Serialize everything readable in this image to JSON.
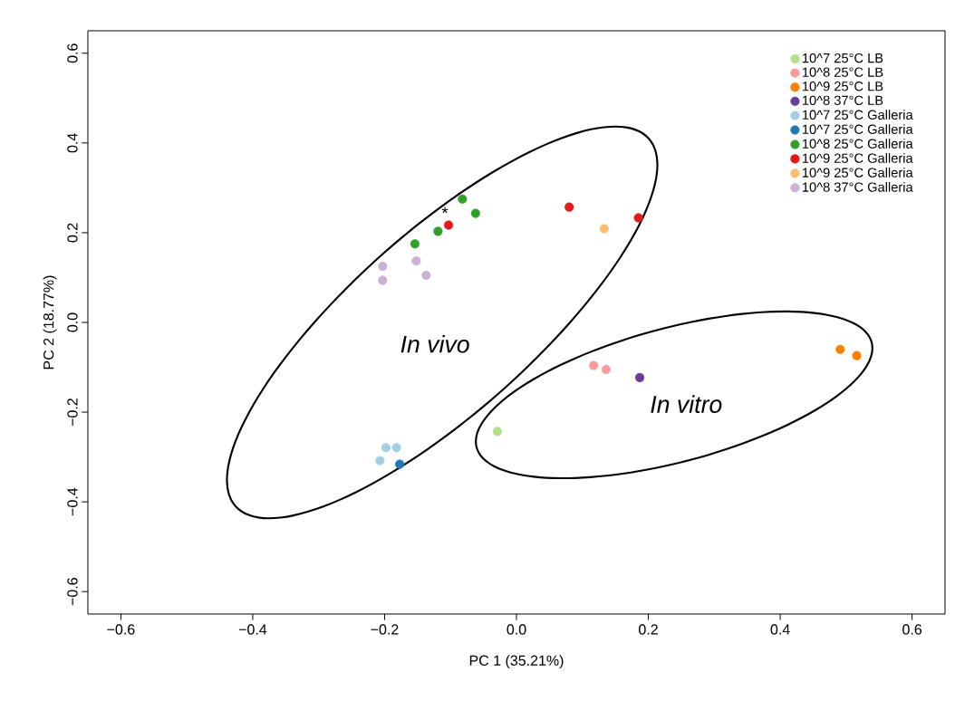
{
  "chart_data": {
    "type": "scatter",
    "xlabel": "PC 1 (35.21%)",
    "ylabel": "PC 2 (18.77%)",
    "xlim": [
      -0.65,
      0.65
    ],
    "ylim": [
      -0.65,
      0.65
    ],
    "xticks": [
      {
        "value": -0.6,
        "label": "−0.6"
      },
      {
        "value": -0.4,
        "label": "−0.4"
      },
      {
        "value": -0.2,
        "label": "−0.2"
      },
      {
        "value": 0,
        "label": "0.0"
      },
      0.2,
      0.4,
      0.6
    ],
    "yticks": [
      {
        "value": -0.6,
        "label": "−0.6"
      },
      {
        "value": -0.4,
        "label": "−0.4"
      },
      {
        "value": -0.2,
        "label": "−0.2"
      },
      {
        "value": 0,
        "label": "0.0"
      },
      0.2,
      0.4,
      0.6
    ],
    "marker": "circle",
    "legend": "top right",
    "grid": false,
    "series": [
      {
        "name": "10^7 25°C LB",
        "color": "#b2df8a",
        "x": [
          -0.029
        ],
        "values": [
          -0.243
        ]
      },
      {
        "name": "10^8 25°C LB",
        "color": "#fb9a99",
        "x": [
          0.117,
          0.136
        ],
        "values": [
          -0.096,
          -0.105
        ]
      },
      {
        "name": "10^9 25°C LB",
        "color": "#ff7f00",
        "x": [
          0.491,
          0.516
        ],
        "values": [
          -0.06,
          -0.074
        ]
      },
      {
        "name": "10^8 37°C LB",
        "color": "#6a3d9a",
        "x": [
          0.187
        ],
        "values": [
          -0.123
        ]
      },
      {
        "name": "10^7 25°C Galleria",
        "color": "#a6cee3",
        "x": [
          -0.198,
          -0.182,
          -0.207
        ],
        "values": [
          -0.279,
          -0.279,
          -0.308
        ]
      },
      {
        "name": "10^7 25°C Galleria",
        "color": "#1f78b4",
        "x": [
          -0.177
        ],
        "values": [
          -0.316
        ]
      },
      {
        "name": "10^8 25°C Galleria",
        "color": "#33a02c",
        "x": [
          -0.154,
          -0.119,
          -0.082,
          -0.062
        ],
        "values": [
          0.175,
          0.203,
          0.275,
          0.243
        ]
      },
      {
        "name": "10^9 25°C Galleria",
        "color": "#e31a1c",
        "x": [
          -0.103,
          0.08,
          0.185
        ],
        "values": [
          0.217,
          0.257,
          0.233
        ]
      },
      {
        "name": "10^9 25°C Galleria",
        "color": "#fdbf6f",
        "x": [
          0.133
        ],
        "values": [
          0.209
        ]
      },
      {
        "name": "10^8 37°C Galleria",
        "color": "#cab2d6",
        "x": [
          -0.203,
          -0.203,
          -0.152,
          -0.137
        ],
        "values": [
          0.125,
          0.094,
          0.137,
          0.105
        ]
      }
    ],
    "annotations": [
      {
        "text": "*",
        "x": -0.103,
        "y": 0.217
      },
      "In vivo",
      "In vitro"
    ]
  }
}
